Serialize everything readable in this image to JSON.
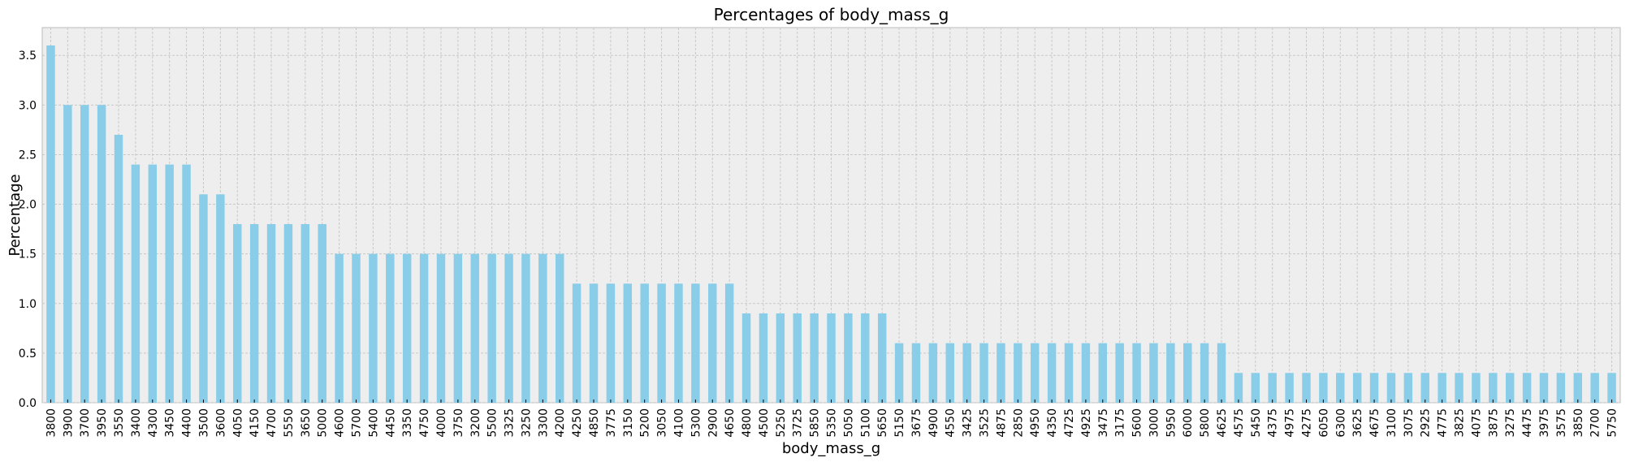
{
  "chart_data": {
    "type": "bar",
    "title": "Percentages of body_mass_g",
    "xlabel": "body_mass_g",
    "ylabel": "Percentage",
    "ylim": [
      0,
      3.78
    ],
    "yticks": [
      "0.0",
      "0.5",
      "1.0",
      "1.5",
      "2.0",
      "2.5",
      "3.0",
      "3.5"
    ],
    "grid": true,
    "legend": "none",
    "bar_color": "#89CDE8",
    "plot_background": "#EEEEEE",
    "categories": [
      "3800",
      "3900",
      "3700",
      "3950",
      "3550",
      "3400",
      "4300",
      "3450",
      "4400",
      "3500",
      "3600",
      "4050",
      "4150",
      "4700",
      "5550",
      "3650",
      "5000",
      "4600",
      "5700",
      "5400",
      "4450",
      "3350",
      "4750",
      "4000",
      "3750",
      "3200",
      "5500",
      "3325",
      "3250",
      "3300",
      "4200",
      "4250",
      "4850",
      "3775",
      "3150",
      "5200",
      "3050",
      "4100",
      "5300",
      "2900",
      "4650",
      "4800",
      "4500",
      "5250",
      "3725",
      "5850",
      "5350",
      "5050",
      "5100",
      "5650",
      "5150",
      "3675",
      "4900",
      "4550",
      "3425",
      "3525",
      "4875",
      "2850",
      "4950",
      "4350",
      "4725",
      "4925",
      "3475",
      "3175",
      "5600",
      "3000",
      "5950",
      "6000",
      "5800",
      "4625",
      "4575",
      "5450",
      "4375",
      "4975",
      "4275",
      "6050",
      "6300",
      "3625",
      "4675",
      "3100",
      "3075",
      "2925",
      "4775",
      "3825",
      "4075",
      "3875",
      "3275",
      "4475",
      "3975",
      "3575",
      "3850",
      "2700",
      "5750"
    ],
    "values": [
      3.6,
      3.0,
      3.0,
      3.0,
      2.7,
      2.4,
      2.4,
      2.4,
      2.4,
      2.1,
      2.1,
      1.8,
      1.8,
      1.8,
      1.8,
      1.8,
      1.8,
      1.5,
      1.5,
      1.5,
      1.5,
      1.5,
      1.5,
      1.5,
      1.5,
      1.5,
      1.5,
      1.5,
      1.5,
      1.5,
      1.5,
      1.2,
      1.2,
      1.2,
      1.2,
      1.2,
      1.2,
      1.2,
      1.2,
      1.2,
      1.2,
      0.9,
      0.9,
      0.9,
      0.9,
      0.9,
      0.9,
      0.9,
      0.9,
      0.9,
      0.6,
      0.6,
      0.6,
      0.6,
      0.6,
      0.6,
      0.6,
      0.6,
      0.6,
      0.6,
      0.6,
      0.6,
      0.6,
      0.6,
      0.6,
      0.6,
      0.6,
      0.6,
      0.6,
      0.6,
      0.3,
      0.3,
      0.3,
      0.3,
      0.3,
      0.3,
      0.3,
      0.3,
      0.3,
      0.3,
      0.3,
      0.3,
      0.3,
      0.3,
      0.3,
      0.3,
      0.3,
      0.3,
      0.3,
      0.3,
      0.3,
      0.3,
      0.3
    ]
  }
}
